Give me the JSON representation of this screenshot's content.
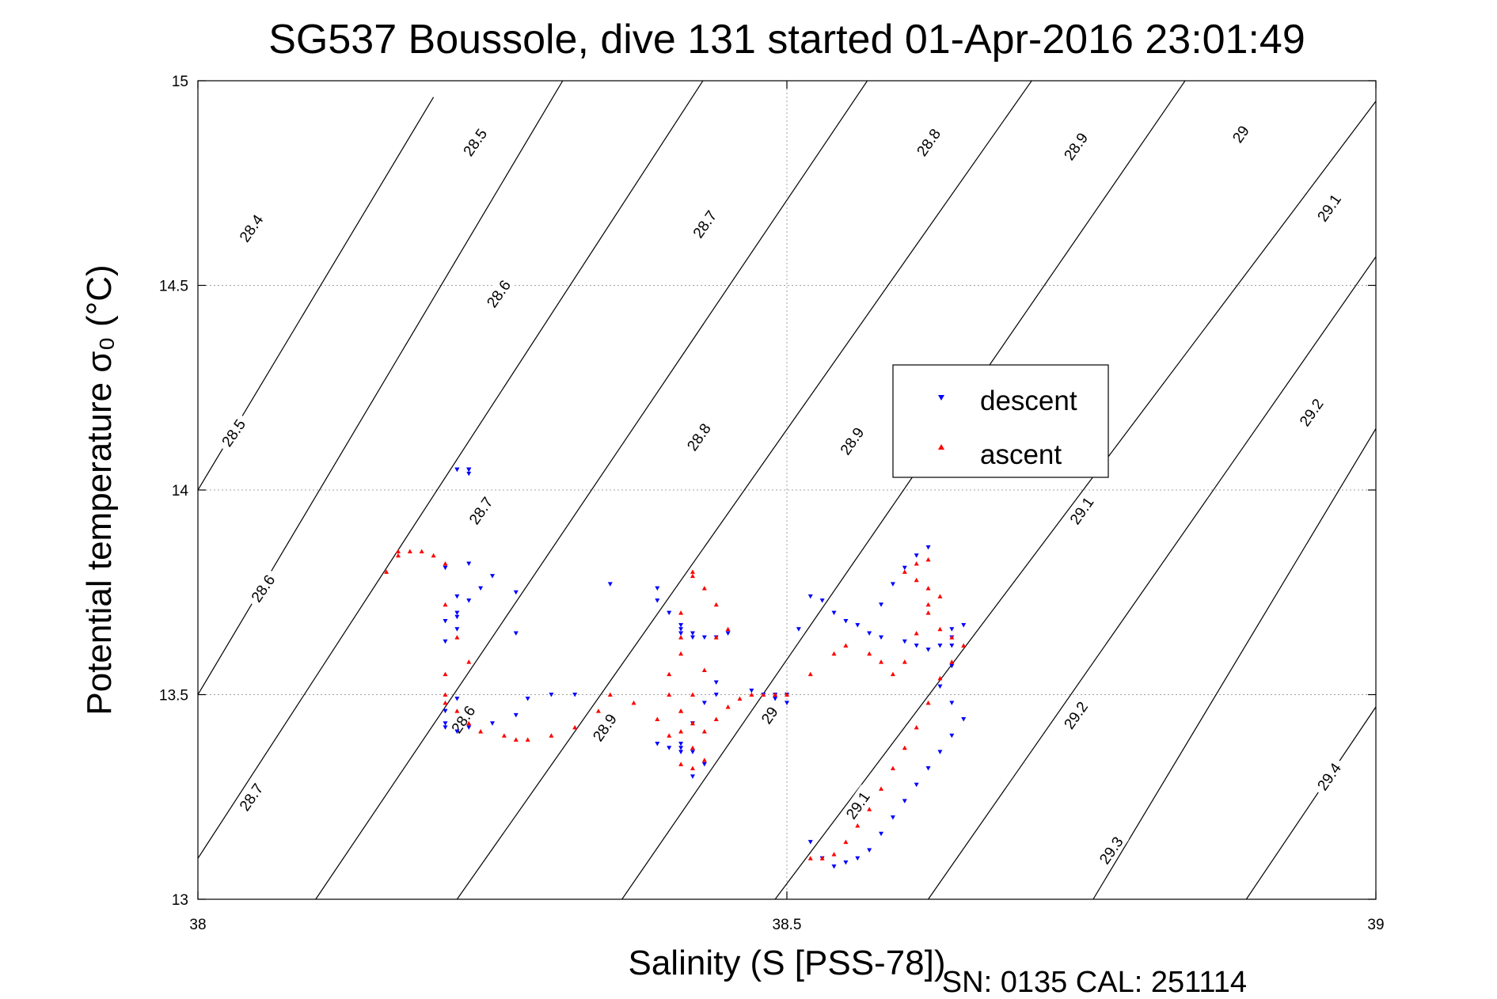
{
  "chart_data": {
    "type": "scatter",
    "title": "SG537 Boussole, dive 131 started 01-Apr-2016 23:01:49",
    "xlabel": "Salinity (S [PSS-78])",
    "ylabel": "Potential temperature σ₀ (°C)",
    "xlim": [
      38,
      39
    ],
    "ylim": [
      13,
      15
    ],
    "xticks": [
      "38",
      "38.5",
      "39"
    ],
    "yticks": [
      "13",
      "13.5",
      "14",
      "14.5",
      "15"
    ],
    "grid": true,
    "legend_position": "center-right",
    "footer": "SN: 0135  CAL: 251114",
    "contours": [
      {
        "level": "28.4",
        "x": [
          38.0,
          38.2
        ],
        "y": [
          14.0,
          14.96
        ]
      },
      {
        "level": "28.5",
        "x": [
          38.0,
          38.32
        ],
        "y": [
          13.5,
          15.05
        ]
      },
      {
        "level": "28.6",
        "x": [
          38.0,
          38.44
        ],
        "y": [
          13.1,
          15.05
        ]
      },
      {
        "level": "28.7",
        "x": [
          38.1,
          38.58
        ],
        "y": [
          13.0,
          15.05
        ]
      },
      {
        "level": "28.8",
        "x": [
          38.22,
          38.72
        ],
        "y": [
          13.0,
          15.05
        ]
      },
      {
        "level": "28.9",
        "x": [
          38.36,
          38.85
        ],
        "y": [
          13.0,
          15.05
        ]
      },
      {
        "level": "29",
        "x": [
          38.49,
          39.0
        ],
        "y": [
          13.0,
          14.95
        ]
      },
      {
        "level": "29.1",
        "x": [
          38.62,
          39.0
        ],
        "y": [
          13.0,
          14.57
        ]
      },
      {
        "level": "29.2",
        "x": [
          38.76,
          39.0
        ],
        "y": [
          13.0,
          14.15
        ]
      },
      {
        "level": "29.3",
        "x": [
          38.89,
          39.0
        ],
        "y": [
          13.0,
          13.47
        ]
      }
    ],
    "contour_labels": [
      {
        "text": "28.5",
        "x": 38.235,
        "y": 14.85
      },
      {
        "text": "28.4",
        "x": 38.045,
        "y": 14.64
      },
      {
        "text": "28.6",
        "x": 38.255,
        "y": 14.48
      },
      {
        "text": "28.5",
        "x": 38.03,
        "y": 14.14
      },
      {
        "text": "28.7",
        "x": 38.24,
        "y": 13.95
      },
      {
        "text": "28.6",
        "x": 38.055,
        "y": 13.76
      },
      {
        "text": "28.6",
        "x": 38.225,
        "y": 13.44
      },
      {
        "text": "28.7",
        "x": 38.045,
        "y": 13.25
      },
      {
        "text": "28.9",
        "x": 38.345,
        "y": 13.42
      },
      {
        "text": "28.8",
        "x": 38.425,
        "y": 14.13
      },
      {
        "text": "28.7",
        "x": 38.43,
        "y": 14.65
      },
      {
        "text": "28.8",
        "x": 38.62,
        "y": 14.85
      },
      {
        "text": "28.9",
        "x": 38.555,
        "y": 14.12
      },
      {
        "text": "29",
        "x": 38.485,
        "y": 13.45
      },
      {
        "text": "28.9",
        "x": 38.745,
        "y": 14.84
      },
      {
        "text": "29",
        "x": 38.885,
        "y": 14.87
      },
      {
        "text": "29.1",
        "x": 38.96,
        "y": 14.69
      },
      {
        "text": "29.2",
        "x": 38.945,
        "y": 14.19
      },
      {
        "text": "29.1",
        "x": 38.75,
        "y": 13.95
      },
      {
        "text": "29.2",
        "x": 38.745,
        "y": 13.45
      },
      {
        "text": "29.1",
        "x": 38.56,
        "y": 13.23
      },
      {
        "text": "29.3",
        "x": 38.775,
        "y": 13.12
      },
      {
        "text": "29.4",
        "x": 38.96,
        "y": 13.3
      }
    ],
    "series": [
      {
        "name": "descent",
        "color": "#0000ff",
        "marker": "triangle-down",
        "x": [
          38.23,
          38.23,
          38.23,
          38.23,
          38.22,
          38.22,
          38.23,
          38.22,
          38.22,
          38.21,
          38.21,
          38.22,
          38.23,
          38.24,
          38.25,
          38.22,
          38.21,
          38.23,
          38.27,
          38.27,
          38.22,
          38.21,
          38.21,
          38.21,
          38.22,
          38.22,
          38.23,
          38.25,
          38.27,
          38.28,
          38.3,
          38.32,
          38.35,
          38.39,
          38.39,
          38.4,
          38.41,
          38.41,
          38.41,
          38.41,
          38.42,
          38.42,
          38.43,
          38.44,
          38.45,
          38.44,
          38.43,
          38.42,
          38.41,
          38.41,
          38.4,
          38.39,
          38.41,
          38.42,
          38.43,
          38.42,
          38.44,
          38.47,
          38.48,
          38.49,
          38.49,
          38.5,
          38.5,
          38.51,
          38.52,
          38.53,
          38.54,
          38.55,
          38.56,
          38.57,
          38.58,
          38.6,
          38.61,
          38.62,
          38.63,
          38.64,
          38.64,
          38.65,
          38.64,
          38.64,
          38.63,
          38.64,
          38.65,
          38.64,
          38.63,
          38.62,
          38.61,
          38.6,
          38.59,
          38.58,
          38.57,
          38.56,
          38.55,
          38.54,
          38.53,
          38.52,
          38.61,
          38.62,
          38.6,
          38.59,
          38.58
        ],
        "y": [
          14.05,
          14.05,
          14.05,
          14.05,
          14.05,
          14.05,
          14.04,
          13.69,
          13.66,
          13.63,
          13.68,
          13.7,
          13.73,
          13.76,
          13.79,
          13.74,
          13.81,
          13.82,
          13.75,
          13.65,
          13.49,
          13.46,
          13.43,
          13.42,
          13.41,
          13.41,
          13.42,
          13.43,
          13.45,
          13.49,
          13.5,
          13.5,
          13.77,
          13.76,
          13.73,
          13.7,
          13.67,
          13.65,
          13.65,
          13.66,
          13.64,
          13.65,
          13.64,
          13.64,
          13.65,
          13.53,
          13.48,
          13.43,
          13.38,
          13.36,
          13.37,
          13.38,
          13.37,
          13.36,
          13.33,
          13.3,
          13.5,
          13.51,
          13.5,
          13.5,
          13.49,
          13.48,
          13.5,
          13.66,
          13.74,
          13.73,
          13.7,
          13.68,
          13.67,
          13.65,
          13.64,
          13.63,
          13.62,
          13.61,
          13.62,
          13.64,
          13.66,
          13.67,
          13.62,
          13.57,
          13.52,
          13.48,
          13.44,
          13.4,
          13.36,
          13.32,
          13.28,
          13.24,
          13.2,
          13.16,
          13.12,
          13.1,
          13.09,
          13.08,
          13.1,
          13.14,
          13.84,
          13.86,
          13.81,
          13.77,
          13.72
        ]
      },
      {
        "name": "ascent",
        "color": "#ff0000",
        "marker": "triangle-up",
        "x": [
          38.16,
          38.17,
          38.17,
          38.18,
          38.19,
          38.2,
          38.21,
          38.21,
          38.22,
          38.23,
          38.21,
          38.21,
          38.21,
          38.22,
          38.23,
          38.24,
          38.26,
          38.27,
          38.28,
          38.3,
          38.32,
          38.34,
          38.35,
          38.37,
          38.39,
          38.4,
          38.41,
          38.42,
          38.43,
          38.42,
          38.41,
          38.41,
          38.42,
          38.43,
          38.44,
          38.45,
          38.44,
          38.43,
          38.42,
          38.42,
          38.41,
          38.41,
          38.41,
          38.4,
          38.4,
          38.41,
          38.42,
          38.43,
          38.44,
          38.45,
          38.46,
          38.47,
          38.48,
          38.49,
          38.5,
          38.52,
          38.54,
          38.55,
          38.57,
          38.58,
          38.59,
          38.6,
          38.61,
          38.62,
          38.63,
          38.62,
          38.61,
          38.6,
          38.61,
          38.62,
          38.62,
          38.63,
          38.64,
          38.65,
          38.64,
          38.63,
          38.62,
          38.61,
          38.6,
          38.59,
          38.58,
          38.57,
          38.56,
          38.55,
          38.54,
          38.53,
          38.52
        ],
        "y": [
          13.8,
          13.84,
          13.85,
          13.85,
          13.85,
          13.84,
          13.82,
          13.72,
          13.64,
          13.58,
          13.55,
          13.5,
          13.48,
          13.46,
          13.43,
          13.41,
          13.4,
          13.39,
          13.39,
          13.4,
          13.42,
          13.46,
          13.5,
          13.48,
          13.44,
          13.4,
          13.33,
          13.32,
          13.34,
          13.37,
          13.41,
          13.46,
          13.5,
          13.56,
          13.64,
          13.66,
          13.72,
          13.76,
          13.79,
          13.8,
          13.7,
          13.64,
          13.6,
          13.55,
          13.5,
          13.46,
          13.43,
          13.41,
          13.44,
          13.47,
          13.49,
          13.5,
          13.5,
          13.5,
          13.5,
          13.55,
          13.6,
          13.62,
          13.6,
          13.58,
          13.55,
          13.58,
          13.65,
          13.7,
          13.74,
          13.76,
          13.78,
          13.8,
          13.82,
          13.83,
          13.72,
          13.66,
          13.64,
          13.62,
          13.58,
          13.54,
          13.48,
          13.42,
          13.37,
          13.32,
          13.27,
          13.22,
          13.18,
          13.14,
          13.11,
          13.1,
          13.1
        ]
      }
    ]
  }
}
